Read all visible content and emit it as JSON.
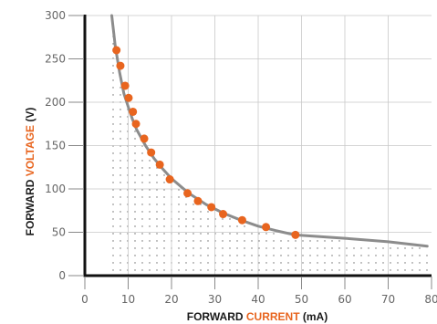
{
  "chart_data": {
    "type": "line",
    "title": "",
    "xlabel": {
      "pre": "FORWARD ",
      "accent": "CURRENT",
      "post": " (mA)"
    },
    "ylabel": {
      "pre": "FORWARD ",
      "accent": "VOLTAGE",
      "post": " (V)"
    },
    "xlim": [
      0,
      80
    ],
    "ylim": [
      0,
      300
    ],
    "x_ticks": [
      0,
      10,
      20,
      30,
      40,
      50,
      60,
      70,
      80
    ],
    "y_ticks": [
      0,
      50,
      100,
      150,
      200,
      250,
      300
    ],
    "grid": true,
    "colors": {
      "line": "#8c8c8c",
      "points": "#e8651f",
      "accent_text": "#e8651f",
      "grid": "#c8c8c8",
      "axis": "#111111"
    },
    "series": [
      {
        "type": "line",
        "x": [
          6.2,
          7.0,
          8.0,
          9.0,
          10.0,
          11.0,
          12.0,
          14.0,
          16.0,
          18.0,
          20.0,
          24.0,
          28.0,
          32.0,
          36.0,
          40.0,
          44.0,
          48.5,
          60.0,
          70.0,
          79.0
        ],
        "y": [
          300,
          265,
          235,
          210,
          195,
          180,
          168,
          150,
          135,
          123,
          112,
          95,
          82,
          72,
          64,
          57,
          52,
          47,
          43,
          39,
          34
        ]
      },
      {
        "type": "scatter",
        "x": [
          7.3,
          8.2,
          9.3,
          10.1,
          11.1,
          11.8,
          13.7,
          15.3,
          17.3,
          19.6,
          23.7,
          26.1,
          29.2,
          31.9,
          36.3,
          41.8,
          48.6
        ],
        "y": [
          260,
          242,
          219,
          205,
          189,
          175,
          158,
          142,
          128,
          111,
          95,
          86,
          79,
          71,
          64,
          56,
          47
        ]
      }
    ]
  }
}
